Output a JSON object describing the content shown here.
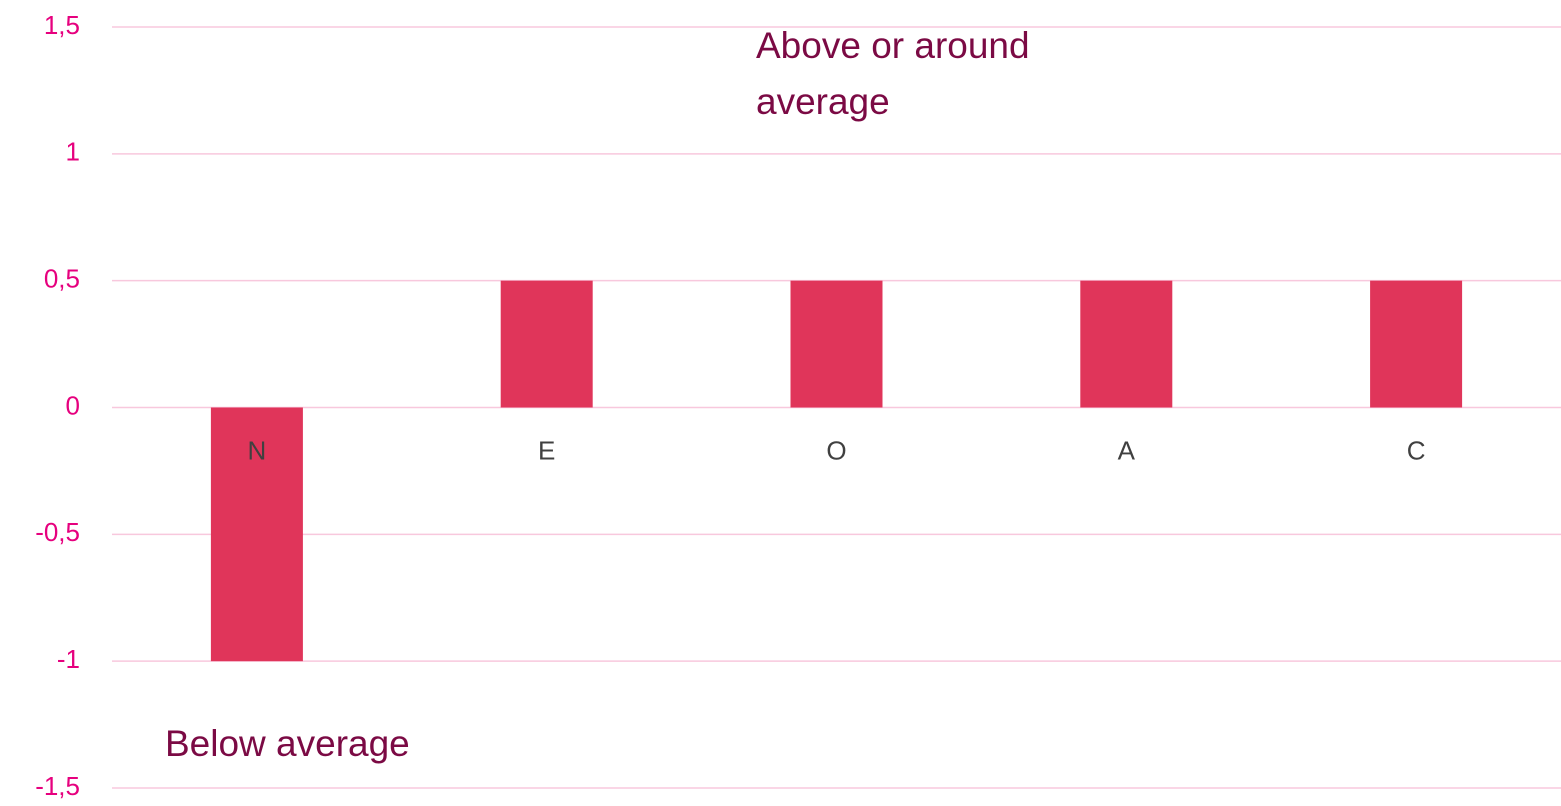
{
  "chart_data": {
    "type": "bar",
    "categories": [
      "N",
      "E",
      "O",
      "A",
      "C"
    ],
    "values": [
      -1,
      0.5,
      0.5,
      0.5,
      0.5
    ],
    "color": "#e0355a",
    "ylim": [
      -1.5,
      1.5
    ],
    "yticks": [
      {
        "value": -1.5,
        "label": "-1,5"
      },
      -1,
      {
        "value": -0.5,
        "label": "-0,5"
      },
      0,
      {
        "value": 0.5,
        "label": "0,5"
      },
      1,
      {
        "value": 1.5,
        "label": "1,5"
      }
    ],
    "grid": true,
    "annotations": [
      "Above or around average",
      "Below average"
    ]
  }
}
